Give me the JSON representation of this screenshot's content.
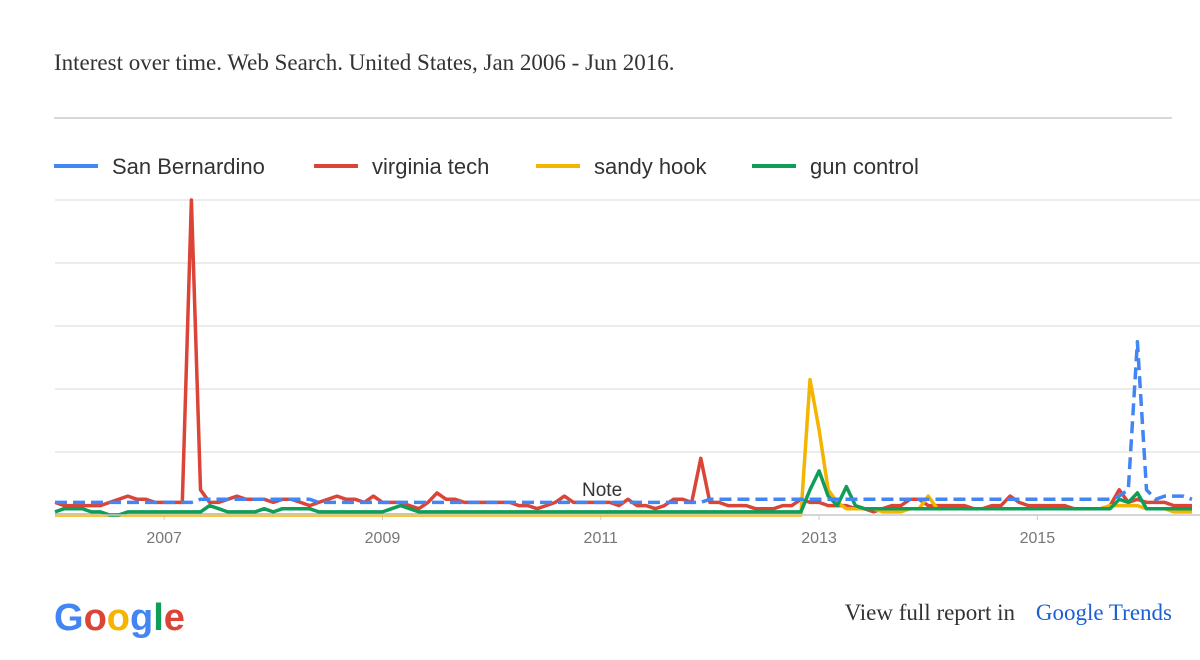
{
  "chart_data": {
    "type": "line",
    "title": "Interest over time. Web Search. United States, Jan 2006 - Jun 2016.",
    "categories": [
      null,
      null,
      null,
      null,
      null,
      null,
      null,
      null,
      null,
      null,
      null,
      null,
      "2007",
      null,
      null,
      null,
      null,
      null,
      null,
      null,
      null,
      null,
      null,
      null,
      null,
      null,
      null,
      null,
      null,
      null,
      null,
      null,
      null,
      null,
      null,
      null,
      "2009",
      null,
      null,
      null,
      null,
      null,
      null,
      null,
      null,
      null,
      null,
      null,
      null,
      null,
      null,
      null,
      null,
      null,
      null,
      null,
      null,
      null,
      null,
      null,
      "2011",
      null,
      null,
      null,
      null,
      null,
      null,
      null,
      null,
      null,
      null,
      null,
      null,
      null,
      null,
      null,
      null,
      null,
      null,
      null,
      null,
      null,
      null,
      null,
      "2013",
      null,
      null,
      null,
      null,
      null,
      null,
      null,
      null,
      null,
      null,
      null,
      null,
      null,
      null,
      null,
      null,
      null,
      null,
      null,
      null,
      null,
      null,
      null,
      "2015",
      null,
      null,
      null,
      null,
      null,
      null,
      null,
      null,
      null,
      null,
      null,
      null,
      null,
      null,
      null,
      null,
      null
    ],
    "series": [
      {
        "name": "San Bernardino",
        "color": "#4285f4",
        "dashed": true,
        "values": [
          4,
          4,
          4,
          4,
          4,
          4,
          4,
          4,
          4,
          4,
          4,
          4,
          4,
          4,
          4,
          4,
          5,
          5,
          5,
          5,
          5,
          5,
          5,
          5,
          5,
          5,
          5,
          5,
          5,
          4,
          4,
          4,
          4,
          4,
          4,
          4,
          4,
          4,
          4,
          4,
          4,
          4,
          4,
          4,
          4,
          4,
          4,
          4,
          4,
          4,
          4,
          4,
          4,
          4,
          4,
          4,
          4,
          4,
          4,
          4,
          4,
          4,
          4,
          4,
          4,
          4,
          4,
          4,
          4,
          4,
          4,
          4,
          5,
          5,
          5,
          5,
          5,
          5,
          5,
          5,
          5,
          5,
          5,
          5,
          5,
          5,
          5,
          5,
          5,
          5,
          5,
          5,
          5,
          5,
          5,
          5,
          5,
          5,
          5,
          5,
          5,
          5,
          5,
          5,
          5,
          5,
          5,
          5,
          5,
          5,
          5,
          5,
          5,
          5,
          5,
          5,
          5,
          6,
          8,
          55,
          8,
          5,
          6,
          6,
          6,
          5
        ]
      },
      {
        "name": "virginia tech",
        "color": "#db4437",
        "values": [
          4,
          3,
          3,
          3,
          3,
          3,
          4,
          5,
          6,
          5,
          5,
          4,
          4,
          4,
          4,
          100,
          8,
          4,
          4,
          5,
          6,
          5,
          5,
          5,
          4,
          5,
          5,
          4,
          3,
          4,
          5,
          6,
          5,
          5,
          4,
          6,
          4,
          4,
          4,
          3,
          2,
          4,
          7,
          5,
          5,
          4,
          4,
          4,
          4,
          4,
          4,
          3,
          3,
          2,
          3,
          4,
          6,
          4,
          4,
          4,
          4,
          4,
          3,
          5,
          3,
          3,
          2,
          3,
          5,
          5,
          4,
          18,
          4,
          4,
          3,
          3,
          3,
          2,
          2,
          2,
          3,
          3,
          5,
          4,
          4,
          3,
          3,
          3,
          2,
          2,
          1,
          2,
          3,
          3,
          5,
          5,
          3,
          3,
          3,
          3,
          3,
          2,
          2,
          3,
          3,
          6,
          4,
          3,
          3,
          3,
          3,
          3,
          2,
          2,
          2,
          2,
          3,
          8,
          4,
          5,
          4,
          4,
          4,
          3,
          3,
          3
        ]
      },
      {
        "name": "sandy hook",
        "color": "#f4b400",
        "values": [
          0,
          0,
          0,
          0,
          0,
          0,
          0,
          0,
          0,
          0,
          0,
          0,
          0,
          0,
          0,
          0,
          0,
          0,
          0,
          0,
          0,
          0,
          0,
          0,
          0,
          0,
          0,
          0,
          0,
          0,
          0,
          0,
          0,
          0,
          0,
          0,
          0,
          0,
          0,
          0,
          0,
          0,
          0,
          0,
          0,
          0,
          0,
          0,
          0,
          0,
          0,
          0,
          0,
          0,
          0,
          0,
          0,
          0,
          0,
          0,
          0,
          0,
          0,
          0,
          0,
          0,
          0,
          0,
          0,
          0,
          0,
          0,
          0,
          0,
          0,
          0,
          0,
          0,
          0,
          0,
          0,
          0,
          0,
          43,
          27,
          8,
          4,
          2,
          2,
          2,
          2,
          1,
          1,
          1,
          2,
          2,
          6,
          2,
          2,
          2,
          2,
          2,
          2,
          2,
          2,
          2,
          2,
          2,
          2,
          2,
          2,
          2,
          2,
          2,
          2,
          2,
          3,
          3,
          3,
          3,
          2,
          2,
          2,
          1,
          1,
          1
        ]
      },
      {
        "name": "gun control",
        "color": "#0f9d58",
        "values": [
          1,
          2,
          2,
          2,
          1,
          1,
          0,
          0,
          1,
          1,
          1,
          1,
          1,
          1,
          1,
          1,
          1,
          3,
          2,
          1,
          1,
          1,
          1,
          2,
          1,
          2,
          2,
          2,
          2,
          1,
          1,
          1,
          1,
          1,
          1,
          1,
          1,
          2,
          3,
          2,
          1,
          1,
          1,
          1,
          1,
          1,
          1,
          1,
          1,
          1,
          1,
          1,
          1,
          1,
          1,
          1,
          1,
          1,
          1,
          1,
          1,
          1,
          1,
          1,
          1,
          1,
          1,
          1,
          1,
          1,
          1,
          1,
          1,
          1,
          1,
          1,
          1,
          1,
          1,
          1,
          1,
          1,
          1,
          8,
          14,
          6,
          3,
          9,
          3,
          2,
          2,
          2,
          2,
          2,
          2,
          2,
          2,
          2,
          2,
          2,
          2,
          2,
          2,
          2,
          2,
          2,
          2,
          2,
          2,
          2,
          2,
          2,
          2,
          2,
          2,
          2,
          2,
          5,
          4,
          7,
          2,
          2,
          2,
          2,
          2,
          2
        ]
      }
    ],
    "ylim": [
      0,
      100
    ],
    "ygrid": [
      0,
      20,
      40,
      60,
      80,
      100
    ],
    "grid": true,
    "annotation": "Note"
  },
  "footer": {
    "logo": "Google",
    "report_text": "View full report in",
    "link": "Google Trends"
  }
}
